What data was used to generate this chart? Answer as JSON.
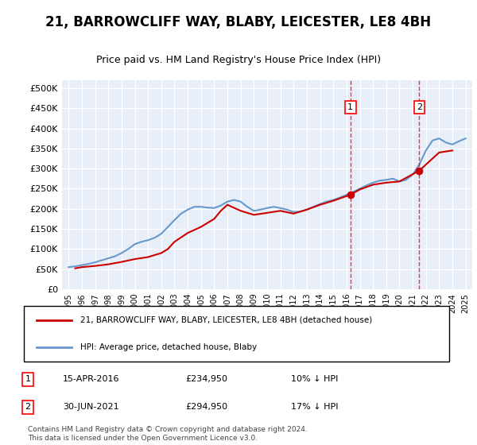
{
  "title": "21, BARROWCLIFF WAY, BLABY, LEICESTER, LE8 4BH",
  "subtitle": "Price paid vs. HM Land Registry's House Price Index (HPI)",
  "ylabel_ticks": [
    "£0",
    "£50K",
    "£100K",
    "£150K",
    "£200K",
    "£250K",
    "£300K",
    "£350K",
    "£400K",
    "£450K",
    "£500K"
  ],
  "ytick_values": [
    0,
    50000,
    100000,
    150000,
    200000,
    250000,
    300000,
    350000,
    400000,
    450000,
    500000
  ],
  "ylim": [
    0,
    520000
  ],
  "background_color": "#e8eef8",
  "plot_bg_color": "#e8eef8",
  "grid_color": "#ffffff",
  "hpi_color": "#6699cc",
  "price_color": "#cc0000",
  "marker1_date": "15-APR-2016",
  "marker1_price": 234950,
  "marker1_year": 2016.29,
  "marker1_label": "1",
  "marker2_date": "30-JUN-2021",
  "marker2_price": 294950,
  "marker2_year": 2021.5,
  "marker2_label": "2",
  "annotation1": "1    15-APR-2016    £234,950    10% ↓ HPI",
  "annotation2": "2    30-JUN-2021    £294,950    17% ↓ HPI",
  "legend_line1": "21, BARROWCLIFF WAY, BLABY, LEICESTER, LE8 4BH (detached house)",
  "legend_line2": "HPI: Average price, detached house, Blaby",
  "footer": "Contains HM Land Registry data © Crown copyright and database right 2024.\nThis data is licensed under the Open Government Licence v3.0.",
  "hpi_years": [
    1995,
    1995.5,
    1996,
    1996.5,
    1997,
    1997.5,
    1998,
    1998.5,
    1999,
    1999.5,
    2000,
    2000.5,
    2001,
    2001.5,
    2002,
    2002.5,
    2003,
    2003.5,
    2004,
    2004.5,
    2005,
    2005.5,
    2006,
    2006.5,
    2007,
    2007.5,
    2008,
    2008.5,
    2009,
    2009.5,
    2010,
    2010.5,
    2011,
    2011.5,
    2012,
    2012.5,
    2013,
    2013.5,
    2014,
    2014.5,
    2015,
    2015.5,
    2016,
    2016.5,
    2017,
    2017.5,
    2018,
    2018.5,
    2019,
    2019.5,
    2020,
    2020.5,
    2021,
    2021.5,
    2022,
    2022.5,
    2023,
    2023.5,
    2024,
    2024.5,
    2025
  ],
  "hpi_values": [
    55000,
    57000,
    60000,
    63000,
    67000,
    72000,
    77000,
    82000,
    90000,
    100000,
    112000,
    118000,
    122000,
    128000,
    138000,
    155000,
    172000,
    188000,
    198000,
    205000,
    205000,
    203000,
    202000,
    208000,
    218000,
    222000,
    218000,
    205000,
    195000,
    198000,
    202000,
    205000,
    202000,
    198000,
    192000,
    193000,
    198000,
    205000,
    212000,
    218000,
    222000,
    228000,
    235000,
    242000,
    250000,
    258000,
    265000,
    270000,
    272000,
    275000,
    268000,
    272000,
    285000,
    310000,
    345000,
    370000,
    375000,
    365000,
    360000,
    368000,
    375000
  ],
  "price_years": [
    1995.5,
    1996,
    1997,
    1998,
    1998.5,
    1999,
    2000,
    2001,
    2002,
    2002.5,
    2003,
    2004,
    2005,
    2006,
    2006.5,
    2007,
    2008,
    2009,
    2010,
    2011,
    2012,
    2013,
    2014,
    2015,
    2016.29,
    2017,
    2018,
    2019,
    2020,
    2021.5,
    2022,
    2023,
    2024
  ],
  "price_values": [
    52000,
    55000,
    58000,
    62000,
    65000,
    68000,
    75000,
    80000,
    90000,
    100000,
    118000,
    140000,
    155000,
    175000,
    195000,
    210000,
    195000,
    185000,
    190000,
    195000,
    188000,
    198000,
    210000,
    220000,
    234950,
    248000,
    260000,
    265000,
    268000,
    294950,
    310000,
    340000,
    345000
  ],
  "xtick_years": [
    1995,
    1996,
    1997,
    1998,
    1999,
    2000,
    2001,
    2002,
    2003,
    2004,
    2005,
    2006,
    2007,
    2008,
    2009,
    2010,
    2011,
    2012,
    2013,
    2014,
    2015,
    2016,
    2017,
    2018,
    2019,
    2020,
    2021,
    2022,
    2023,
    2024,
    2025
  ]
}
